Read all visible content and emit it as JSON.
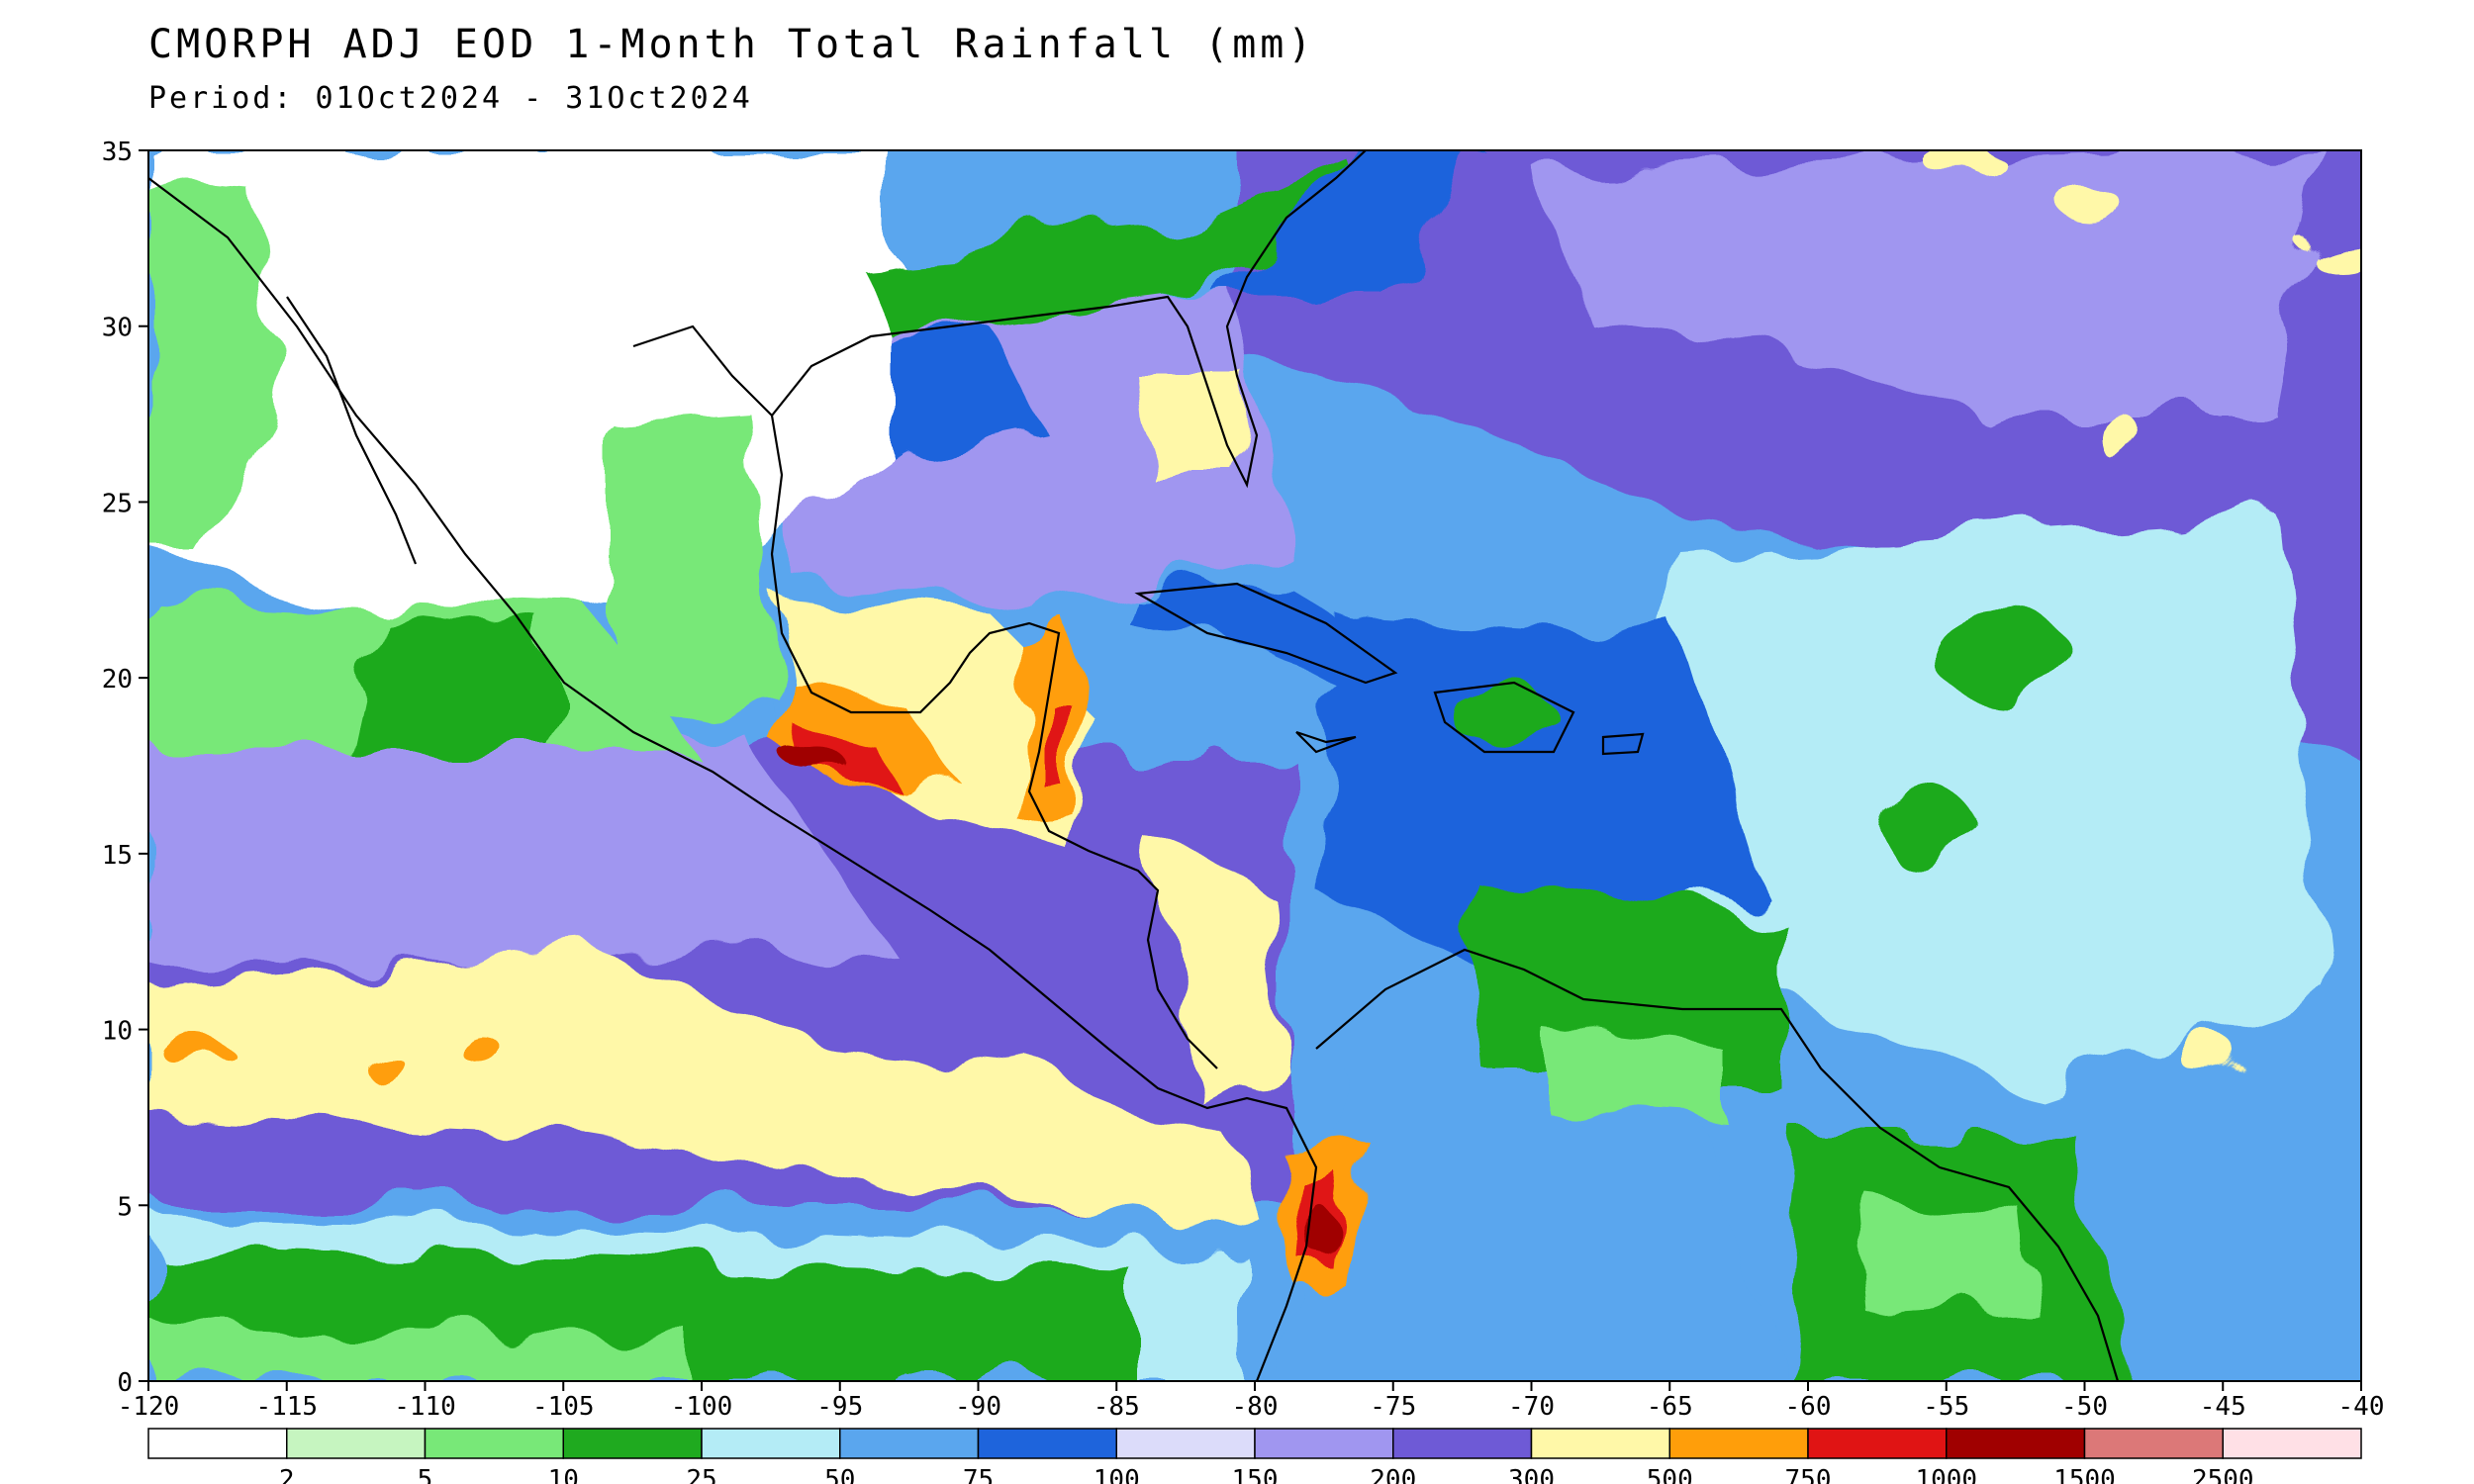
{
  "title": "CMORPH ADJ EOD 1-Month Total Rainfall (mm)",
  "period": "Period: 01Oct2024 - 31Oct2024",
  "map": {
    "lon_range": [
      -120,
      -40
    ],
    "lat_range": [
      0,
      35
    ],
    "lon_ticks": [
      "-120",
      "-115",
      "-110",
      "-105",
      "-100",
      "-95",
      "-90",
      "-85",
      "-80",
      "-75",
      "-70",
      "-65",
      "-60",
      "-55",
      "-50",
      "-45",
      "-40"
    ],
    "lat_ticks": [
      "0",
      "5",
      "10",
      "15",
      "20",
      "25",
      "30",
      "35"
    ]
  },
  "legend": {
    "colors": [
      "#ffffff",
      "#c6f5c0",
      "#78e878",
      "#1faa1f",
      "#b4ecf6",
      "#5aa6ee",
      "#1e64dc",
      "#dcdcfa",
      "#a096f0",
      "#6e5ad6",
      "#fff8a8",
      "#ff9e0a",
      "#e01414",
      "#a00000",
      "#dc7878",
      "#ffe0e6"
    ],
    "labels": [
      "2",
      "5",
      "10",
      "25",
      "50",
      "75",
      "100",
      "150",
      "200",
      "300",
      "500",
      "750",
      "1000",
      "1500",
      "2500"
    ]
  }
}
